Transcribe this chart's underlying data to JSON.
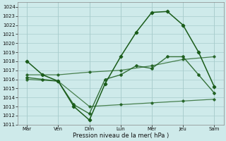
{
  "xlabel": "Pression niveau de la mer( hPa )",
  "background_color": "#ceeaea",
  "grid_color": "#a8cccc",
  "dark": "#1a5c1a",
  "ylim_min": 1011,
  "ylim_max": 1024.5,
  "yticks": [
    1011,
    1012,
    1013,
    1014,
    1015,
    1016,
    1017,
    1018,
    1019,
    1020,
    1021,
    1022,
    1023,
    1024
  ],
  "x_labels": [
    "Mar",
    "Ven",
    "Dim",
    "Lun",
    "Mer",
    "Jeu",
    "Sam"
  ],
  "x_day_pos": [
    0,
    1,
    2,
    3,
    4,
    5,
    6
  ],
  "line1_x": [
    0,
    0.5,
    1.0,
    1.5,
    2.0,
    2.5,
    3.0,
    3.5,
    4.0,
    4.5,
    5.0,
    5.5,
    6.0
  ],
  "line1_y": [
    1018.0,
    1016.5,
    1015.8,
    1013.0,
    1011.5,
    1015.5,
    1018.5,
    1021.2,
    1023.4,
    1023.5,
    1022.0,
    1019.0,
    1015.2
  ],
  "line2_x": [
    0,
    0.5,
    1.0,
    1.5,
    2.0,
    2.5,
    3.0,
    3.5,
    4.0,
    4.5,
    5.0,
    5.5,
    6.0
  ],
  "line2_y": [
    1016.2,
    1016.0,
    1015.8,
    1013.2,
    1012.2,
    1016.0,
    1016.5,
    1017.5,
    1017.2,
    1018.5,
    1018.5,
    1016.5,
    1014.5
  ],
  "line3_x": [
    0,
    1,
    2,
    3,
    4,
    5,
    6
  ],
  "line3_y": [
    1016.0,
    1015.8,
    1013.0,
    1013.2,
    1013.4,
    1013.6,
    1013.8
  ],
  "line4_x": [
    0,
    1,
    2,
    3,
    4,
    5,
    6
  ],
  "line4_y": [
    1016.5,
    1016.5,
    1016.8,
    1017.0,
    1017.5,
    1018.2,
    1018.5
  ]
}
